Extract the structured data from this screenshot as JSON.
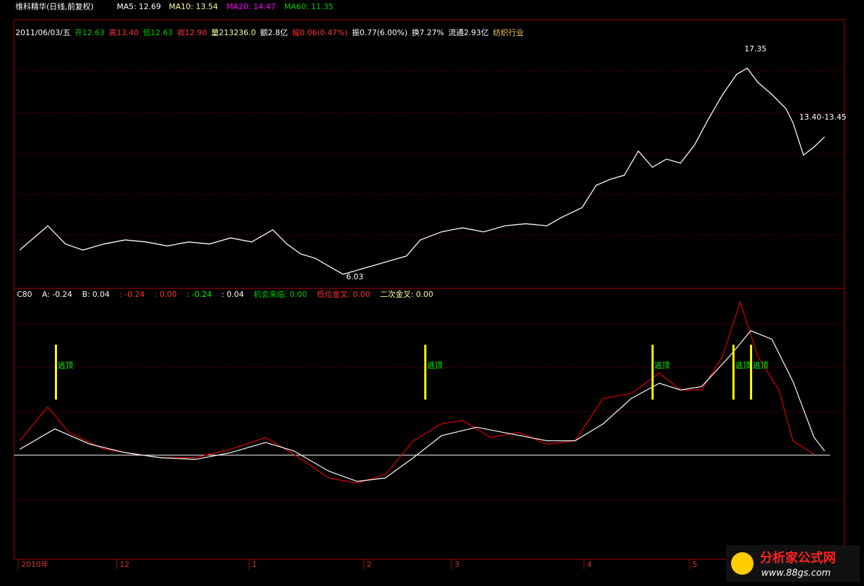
{
  "header": {
    "title": "维科精华(日线,前复权)",
    "ma5": "MA5: 12.69",
    "ma10": "MA10: 13.54",
    "ma20": "MA20: 14.47",
    "ma60": "MA60: 11.35",
    "quote": [
      "2011/06/03/五",
      "开12.63",
      "高13.40",
      "低12.63",
      "收12.90",
      "量213236.0",
      "额2.8亿",
      "幅0.06(0.47%)",
      "振0.77(6.00%)",
      "换7.27%",
      "流通2.93亿",
      "纺织行业"
    ]
  },
  "price": {
    "xlim": [
      0,
      229
    ],
    "ylim": [
      5.4,
      18.7
    ],
    "x": [
      0,
      8,
      13,
      18,
      24,
      30,
      36,
      42,
      48,
      54,
      60,
      66,
      72,
      76,
      80,
      84,
      88,
      92,
      98,
      104,
      110,
      114,
      120,
      126,
      132,
      138,
      144,
      150,
      154,
      160,
      164,
      168,
      172,
      176,
      180,
      184,
      188,
      192,
      196,
      200,
      204,
      207,
      210,
      214,
      218,
      220,
      223,
      226,
      229
    ],
    "close": [
      7.3,
      8.5,
      7.6,
      7.3,
      7.6,
      7.8,
      7.7,
      7.5,
      7.7,
      7.6,
      7.9,
      7.7,
      8.3,
      7.6,
      7.1,
      6.9,
      6.5,
      6.1,
      6.4,
      6.7,
      7.0,
      7.8,
      8.2,
      8.4,
      8.2,
      8.5,
      8.6,
      8.5,
      8.9,
      9.4,
      10.5,
      10.8,
      11.0,
      12.2,
      11.4,
      11.8,
      11.6,
      12.5,
      13.8,
      15.0,
      16.0,
      16.3,
      15.6,
      15.0,
      14.3,
      13.6,
      12.0,
      12.4,
      12.9
    ],
    "high_label": "17.35",
    "low_label": "6.03",
    "last_label": "13.40-13.45"
  },
  "indicator": {
    "header": [
      "C80",
      "A: -0.24",
      "B: 0.04",
      ": -0.24",
      ": 0.00",
      ": -0.24",
      ": 0.04",
      "机会来临: 0.00",
      "低位金叉: 0.00",
      "二次金叉: 0.00"
    ],
    "ylim": [
      -0.6,
      1.0
    ],
    "white_x": [
      0,
      10,
      20,
      30,
      40,
      50,
      60,
      70,
      78,
      88,
      96,
      104,
      112,
      120,
      130,
      140,
      150,
      158,
      166,
      174,
      182,
      188,
      194,
      202,
      208,
      214,
      220,
      226,
      229
    ],
    "white": [
      0.05,
      0.17,
      0.08,
      0.03,
      0.0,
      -0.01,
      0.03,
      0.09,
      0.04,
      -0.08,
      -0.14,
      -0.12,
      0.0,
      0.13,
      0.18,
      0.14,
      0.1,
      0.1,
      0.2,
      0.35,
      0.44,
      0.4,
      0.42,
      0.6,
      0.75,
      0.7,
      0.45,
      0.12,
      0.04
    ],
    "red_x": [
      0,
      8,
      14,
      24,
      40,
      50,
      60,
      70,
      78,
      88,
      96,
      104,
      112,
      120,
      126,
      134,
      142,
      150,
      158,
      166,
      174,
      182,
      188,
      194,
      200,
      205,
      210,
      216,
      220,
      226
    ],
    "red": [
      0.1,
      0.3,
      0.15,
      0.05,
      0.0,
      0.0,
      0.05,
      0.12,
      0.02,
      -0.12,
      -0.15,
      -0.1,
      0.1,
      0.2,
      0.22,
      0.12,
      0.15,
      0.08,
      0.1,
      0.35,
      0.38,
      0.5,
      0.4,
      0.4,
      0.6,
      0.92,
      0.6,
      0.4,
      0.1,
      0.02
    ],
    "signals": [
      "逃顶",
      "逃顶",
      "逃顶",
      "逃顶",
      "逃顶"
    ]
  },
  "x_axis": [
    "2010年",
    "12",
    "1",
    "2",
    "3",
    "4",
    "5"
  ],
  "watermark": {
    "name": "分析家公式网",
    "url": "www.88gs.com"
  }
}
